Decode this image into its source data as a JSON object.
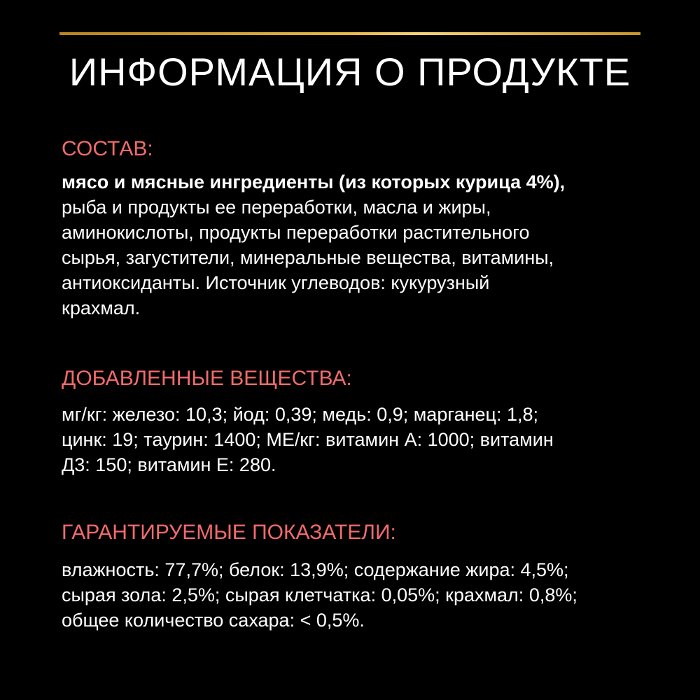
{
  "colors": {
    "background": "#000000",
    "accent_line": "#e8b84a",
    "heading": "#f26b6b",
    "text": "#ffffff"
  },
  "title": "ИНФОРМАЦИЯ О ПРОДУКТЕ",
  "composition": {
    "heading": "СОСТАВ:",
    "lines": [
      "мясо и мясные ингредиенты (из которых курица 4%),",
      "рыба и продукты ее переработки, масла и жиры,",
      "аминокислоты, продукты переработки растительного",
      "сырья, загустители, минеральные вещества, витамины,",
      "антиоксиданты. Источник углеводов: кукурузный",
      "крахмал."
    ]
  },
  "additives": {
    "heading": "ДОБАВЛЕННЫЕ ВЕЩЕСТВА:",
    "lines": [
      "мг/кг: железо: 10,3; йод: 0,39; медь: 0,9; марганец: 1,8;",
      "цинк: 19; таурин: 1400; МЕ/кг: витамин А: 1000; витамин",
      "Д3: 150; витамин Е: 280."
    ]
  },
  "guaranteed": {
    "heading": "ГАРАНТИРУЕМЫЕ ПОКАЗАТЕЛИ:",
    "lines": [
      "влажность: 77,7%; белок: 13,9%; содержание жира: 4,5%;",
      "сырая зола: 2,5%; сырая клетчатка: 0,05%; крахмал: 0,8%;",
      "общее количество сахара: < 0,5%."
    ]
  }
}
